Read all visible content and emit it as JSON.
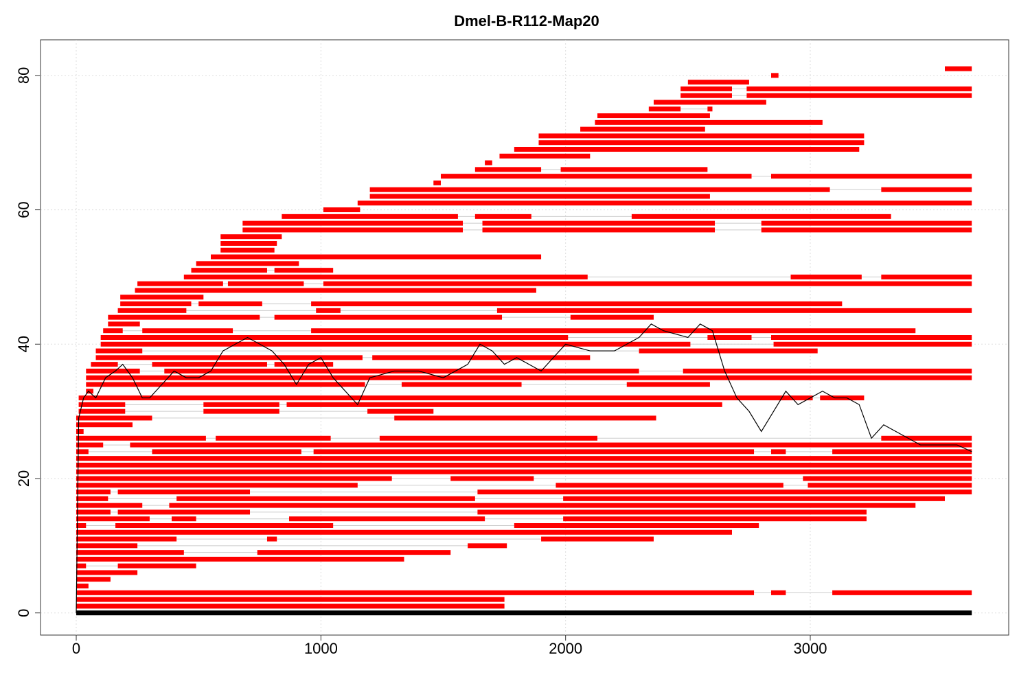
{
  "chart_data": {
    "type": "segments",
    "title": "Dmel-B-R112-Map20",
    "xlim": [
      -146,
      3811
    ],
    "ylim": [
      -3.3,
      85.3
    ],
    "xticks": [
      0,
      1000,
      2000,
      3000
    ],
    "yticks": [
      0,
      20,
      40,
      60,
      80
    ],
    "grid": true,
    "color": "#ff0000",
    "base": {
      "y": 0,
      "start": 0,
      "end": 3660,
      "color": "#000000"
    },
    "rows": [
      [
        81,
        [
          [
            3550,
            3660
          ]
        ]
      ],
      [
        80,
        [
          [
            2840,
            2870
          ]
        ]
      ],
      [
        79,
        [
          [
            2500,
            2750
          ]
        ]
      ],
      [
        78,
        [
          [
            2470,
            2680
          ],
          [
            2740,
            3660
          ]
        ]
      ],
      [
        77,
        [
          [
            2470,
            2680
          ],
          [
            2740,
            3660
          ]
        ]
      ],
      [
        76,
        [
          [
            2360,
            2820
          ]
        ]
      ],
      [
        75,
        [
          [
            2340,
            2470
          ],
          [
            2580,
            2600
          ]
        ]
      ],
      [
        74,
        [
          [
            2130,
            2590
          ]
        ]
      ],
      [
        73,
        [
          [
            2120,
            3050
          ]
        ]
      ],
      [
        72,
        [
          [
            2060,
            2570
          ]
        ]
      ],
      [
        71,
        [
          [
            1890,
            3220
          ]
        ]
      ],
      [
        70,
        [
          [
            1890,
            3220
          ]
        ]
      ],
      [
        69,
        [
          [
            1790,
            3200
          ]
        ]
      ],
      [
        68,
        [
          [
            1730,
            2100
          ]
        ]
      ],
      [
        67,
        [
          [
            1670,
            1700
          ]
        ]
      ],
      [
        66,
        [
          [
            1630,
            1900
          ],
          [
            1980,
            2580
          ]
        ]
      ],
      [
        65,
        [
          [
            1490,
            2760
          ],
          [
            2840,
            3660
          ]
        ]
      ],
      [
        64,
        [
          [
            1460,
            1490
          ]
        ]
      ],
      [
        63,
        [
          [
            1200,
            3080
          ],
          [
            3290,
            3660
          ]
        ]
      ],
      [
        62,
        [
          [
            1200,
            2590
          ]
        ]
      ],
      [
        61,
        [
          [
            1150,
            3660
          ]
        ]
      ],
      [
        60,
        [
          [
            1010,
            1160
          ]
        ]
      ],
      [
        59,
        [
          [
            840,
            1560
          ],
          [
            1630,
            1860
          ],
          [
            2270,
            3330
          ]
        ]
      ],
      [
        58,
        [
          [
            680,
            1580
          ],
          [
            1660,
            2610
          ],
          [
            2800,
            3660
          ]
        ]
      ],
      [
        57,
        [
          [
            680,
            1580
          ],
          [
            1660,
            2610
          ],
          [
            2800,
            3660
          ]
        ]
      ],
      [
        56,
        [
          [
            590,
            840
          ]
        ]
      ],
      [
        55,
        [
          [
            590,
            820
          ]
        ]
      ],
      [
        54,
        [
          [
            590,
            810
          ]
        ]
      ],
      [
        53,
        [
          [
            550,
            1900
          ]
        ]
      ],
      [
        52,
        [
          [
            490,
            910
          ]
        ]
      ],
      [
        51,
        [
          [
            470,
            780
          ],
          [
            810,
            1050
          ]
        ]
      ],
      [
        50,
        [
          [
            440,
            2090
          ],
          [
            2920,
            3210
          ],
          [
            3290,
            3660
          ]
        ]
      ],
      [
        49,
        [
          [
            250,
            600
          ],
          [
            620,
            930
          ],
          [
            1010,
            3660
          ]
        ]
      ],
      [
        48,
        [
          [
            240,
            1880
          ]
        ]
      ],
      [
        47,
        [
          [
            180,
            520
          ]
        ]
      ],
      [
        46,
        [
          [
            180,
            470
          ],
          [
            500,
            760
          ],
          [
            960,
            3130
          ]
        ]
      ],
      [
        45,
        [
          [
            170,
            450
          ],
          [
            980,
            1080
          ],
          [
            1720,
            3660
          ]
        ]
      ],
      [
        44,
        [
          [
            130,
            750
          ],
          [
            810,
            1740
          ],
          [
            2020,
            2360
          ]
        ]
      ],
      [
        43,
        [
          [
            130,
            260
          ]
        ]
      ],
      [
        42,
        [
          [
            110,
            190
          ],
          [
            270,
            640
          ],
          [
            960,
            3430
          ]
        ]
      ],
      [
        41,
        [
          [
            100,
            2010
          ],
          [
            2580,
            2760
          ],
          [
            2840,
            3660
          ]
        ]
      ],
      [
        40,
        [
          [
            100,
            2510
          ],
          [
            2850,
            3660
          ]
        ]
      ],
      [
        39,
        [
          [
            80,
            270
          ],
          [
            2300,
            3030
          ]
        ]
      ],
      [
        38,
        [
          [
            80,
            1170
          ],
          [
            1210,
            2100
          ]
        ]
      ],
      [
        37,
        [
          [
            60,
            170
          ],
          [
            310,
            780
          ],
          [
            810,
            1050
          ]
        ]
      ],
      [
        36,
        [
          [
            40,
            260
          ],
          [
            360,
            2300
          ],
          [
            2480,
            3660
          ]
        ]
      ],
      [
        35,
        [
          [
            40,
            3660
          ]
        ]
      ],
      [
        34,
        [
          [
            40,
            1180
          ],
          [
            1330,
            1820
          ],
          [
            2250,
            2590
          ]
        ]
      ],
      [
        33,
        [
          [
            40,
            70
          ]
        ]
      ],
      [
        32,
        [
          [
            10,
            3010
          ],
          [
            3040,
            3220
          ]
        ]
      ],
      [
        31,
        [
          [
            10,
            200
          ],
          [
            520,
            830
          ],
          [
            860,
            2640
          ]
        ]
      ],
      [
        30,
        [
          [
            10,
            200
          ],
          [
            520,
            830
          ],
          [
            1190,
            1460
          ]
        ]
      ],
      [
        29,
        [
          [
            0,
            310
          ],
          [
            1300,
            2370
          ]
        ]
      ],
      [
        28,
        [
          [
            0,
            230
          ]
        ]
      ],
      [
        27,
        [
          [
            0,
            30
          ]
        ]
      ],
      [
        26,
        [
          [
            0,
            530
          ],
          [
            570,
            1040
          ],
          [
            1240,
            2130
          ],
          [
            3290,
            3660
          ]
        ]
      ],
      [
        25,
        [
          [
            0,
            110
          ],
          [
            220,
            3660
          ]
        ]
      ],
      [
        24,
        [
          [
            0,
            50
          ],
          [
            310,
            920
          ],
          [
            970,
            2770
          ],
          [
            2840,
            2900
          ],
          [
            3090,
            3660
          ]
        ]
      ],
      [
        23,
        [
          [
            0,
            3660
          ]
        ]
      ],
      [
        22,
        [
          [
            0,
            3660
          ]
        ]
      ],
      [
        21,
        [
          [
            0,
            3660
          ]
        ]
      ],
      [
        20,
        [
          [
            0,
            1290
          ],
          [
            1530,
            1870
          ],
          [
            2970,
            3660
          ]
        ]
      ],
      [
        19,
        [
          [
            0,
            1150
          ],
          [
            1960,
            2890
          ],
          [
            2990,
            3660
          ]
        ]
      ],
      [
        18,
        [
          [
            0,
            140
          ],
          [
            170,
            710
          ],
          [
            1640,
            3660
          ]
        ]
      ],
      [
        17,
        [
          [
            0,
            130
          ],
          [
            410,
            1630
          ],
          [
            1990,
            3550
          ]
        ]
      ],
      [
        16,
        [
          [
            0,
            270
          ],
          [
            380,
            3430
          ]
        ]
      ],
      [
        15,
        [
          [
            0,
            140
          ],
          [
            170,
            710
          ],
          [
            1640,
            3230
          ]
        ]
      ],
      [
        14,
        [
          [
            0,
            300
          ],
          [
            390,
            490
          ],
          [
            870,
            1670
          ],
          [
            1990,
            3230
          ]
        ]
      ],
      [
        13,
        [
          [
            0,
            40
          ],
          [
            160,
            1050
          ],
          [
            1790,
            2790
          ]
        ]
      ],
      [
        12,
        [
          [
            0,
            2680
          ]
        ]
      ],
      [
        11,
        [
          [
            0,
            410
          ],
          [
            780,
            820
          ],
          [
            1900,
            2360
          ]
        ]
      ],
      [
        10,
        [
          [
            0,
            250
          ],
          [
            1600,
            1760
          ]
        ]
      ],
      [
        9,
        [
          [
            0,
            440
          ],
          [
            740,
            1530
          ]
        ]
      ],
      [
        8,
        [
          [
            0,
            1340
          ]
        ]
      ],
      [
        7,
        [
          [
            0,
            40
          ],
          [
            170,
            490
          ]
        ]
      ],
      [
        6,
        [
          [
            0,
            250
          ]
        ]
      ],
      [
        5,
        [
          [
            0,
            140
          ]
        ]
      ],
      [
        4,
        [
          [
            0,
            50
          ]
        ]
      ],
      [
        3,
        [
          [
            0,
            2770
          ],
          [
            2840,
            2900
          ],
          [
            3090,
            3660
          ]
        ]
      ],
      [
        2,
        [
          [
            0,
            1750
          ]
        ]
      ],
      [
        1,
        [
          [
            0,
            1750
          ]
        ]
      ]
    ],
    "line": {
      "color": "#000000",
      "x": [
        0,
        10,
        30,
        50,
        80,
        120,
        160,
        190,
        230,
        270,
        300,
        350,
        400,
        450,
        500,
        550,
        600,
        650,
        700,
        750,
        800,
        850,
        900,
        950,
        1000,
        1050,
        1100,
        1150,
        1200,
        1300,
        1400,
        1500,
        1600,
        1650,
        1700,
        1750,
        1800,
        1900,
        2000,
        2100,
        2200,
        2300,
        2350,
        2400,
        2500,
        2550,
        2600,
        2650,
        2700,
        2750,
        2800,
        2850,
        2900,
        2950,
        3000,
        3050,
        3100,
        3150,
        3200,
        3250,
        3300,
        3350,
        3400,
        3450,
        3500,
        3550,
        3600,
        3660
      ],
      "y": [
        0,
        29,
        32,
        33,
        32,
        35,
        36,
        37,
        35,
        32,
        32,
        34,
        36,
        35,
        35,
        36,
        39,
        40,
        41,
        40,
        39,
        37,
        34,
        37,
        38,
        35,
        33,
        31,
        35,
        36,
        36,
        35,
        37,
        40,
        39,
        37,
        38,
        36,
        40,
        39,
        39,
        41,
        43,
        42,
        41,
        43,
        42,
        36,
        32,
        30,
        27,
        30,
        33,
        31,
        32,
        33,
        32,
        32,
        31,
        26,
        28,
        27,
        26,
        25,
        25,
        25,
        25,
        24
      ]
    }
  }
}
